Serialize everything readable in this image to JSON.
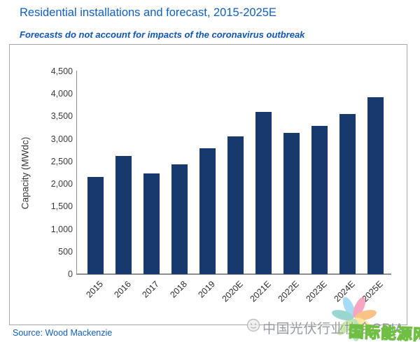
{
  "header": {
    "title": "Residential installations and forecast, 2015-2025E",
    "subtitle": "Forecasts do not account for impacts of the coronavirus outbreak"
  },
  "source": {
    "text": "Source: Wood Mackenzie"
  },
  "watermark": {
    "cpia_text": "中国光伏行业协会CPIA",
    "energy_net_text": "国际能源网",
    "face_icon": "gray-face-icon",
    "flower_icon": "pastel-flower-logo"
  },
  "colors": {
    "title_blue": "#115fc2",
    "bar_navy": "#17396d",
    "axis_gray": "#8f8f8f",
    "frame_gray": "#a6a6a6",
    "tick_text": "#3b3b3b",
    "watermark_gray": "#8d939b",
    "watermark_green": "#6fbf44"
  },
  "chart_data": {
    "type": "bar",
    "title": "Residential installations and forecast, 2015-2025E",
    "categories": [
      "2015",
      "2016",
      "2017",
      "2018",
      "2019",
      "2020E",
      "2021E",
      "2022E",
      "2023E",
      "2024E",
      "2025E"
    ],
    "values": [
      2150,
      2620,
      2230,
      2440,
      2800,
      3060,
      3600,
      3130,
      3290,
      3560,
      3920
    ],
    "xlabel": "",
    "ylabel": "Capacity (MWdc)",
    "ylim": [
      0,
      4500
    ],
    "ytick_step": 500,
    "ytick_labels": [
      "0",
      "500",
      "1,000",
      "1,500",
      "2,000",
      "2,500",
      "3,000",
      "3,500",
      "4,000",
      "4,500"
    ],
    "grid": false,
    "legend": false,
    "bar_color": "#17396d"
  }
}
